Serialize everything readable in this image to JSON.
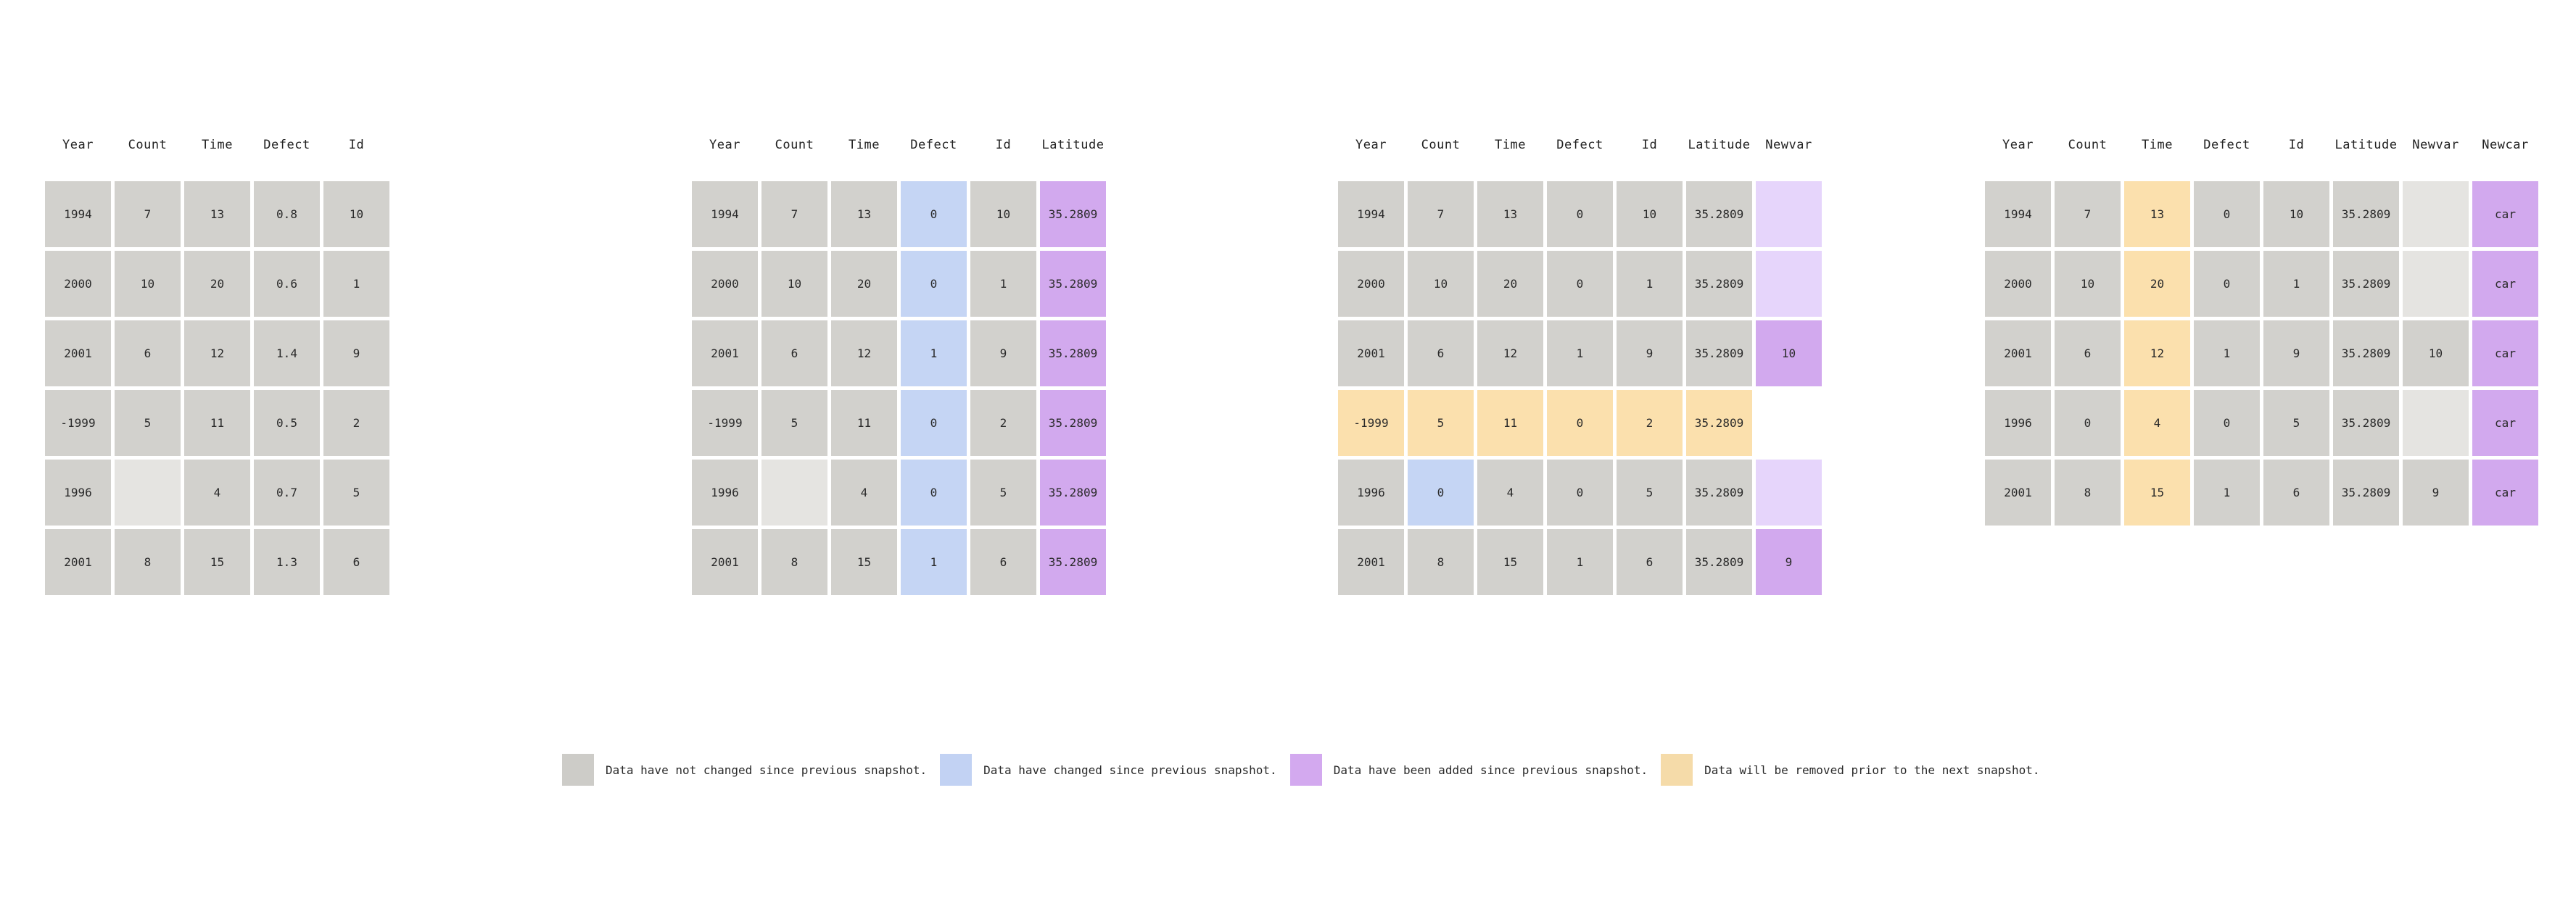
{
  "panels": [
    {
      "headers": [
        "Year",
        "Count",
        "Time",
        "Defect",
        "Id"
      ],
      "rows": [
        [
          {
            "v": "1994",
            "s": "same"
          },
          {
            "v": "7",
            "s": "same"
          },
          {
            "v": "13",
            "s": "same"
          },
          {
            "v": "0.8",
            "s": "same"
          },
          {
            "v": "10",
            "s": "same"
          }
        ],
        [
          {
            "v": "2000",
            "s": "same"
          },
          {
            "v": "10",
            "s": "same"
          },
          {
            "v": "20",
            "s": "same"
          },
          {
            "v": "0.6",
            "s": "same"
          },
          {
            "v": "1",
            "s": "same"
          }
        ],
        [
          {
            "v": "2001",
            "s": "same"
          },
          {
            "v": "6",
            "s": "same"
          },
          {
            "v": "12",
            "s": "same"
          },
          {
            "v": "1.4",
            "s": "same"
          },
          {
            "v": "9",
            "s": "same"
          }
        ],
        [
          {
            "v": "-1999",
            "s": "same"
          },
          {
            "v": "5",
            "s": "same"
          },
          {
            "v": "11",
            "s": "same"
          },
          {
            "v": "0.5",
            "s": "same"
          },
          {
            "v": "2",
            "s": "same"
          }
        ],
        [
          {
            "v": "1996",
            "s": "same"
          },
          {
            "v": "",
            "s": "empty"
          },
          {
            "v": "4",
            "s": "same"
          },
          {
            "v": "0.7",
            "s": "same"
          },
          {
            "v": "5",
            "s": "same"
          }
        ],
        [
          {
            "v": "2001",
            "s": "same"
          },
          {
            "v": "8",
            "s": "same"
          },
          {
            "v": "15",
            "s": "same"
          },
          {
            "v": "1.3",
            "s": "same"
          },
          {
            "v": "6",
            "s": "same"
          }
        ]
      ]
    },
    {
      "headers": [
        "Year",
        "Count",
        "Time",
        "Defect",
        "Id",
        "Latitude"
      ],
      "rows": [
        [
          {
            "v": "1994",
            "s": "same"
          },
          {
            "v": "7",
            "s": "same"
          },
          {
            "v": "13",
            "s": "same"
          },
          {
            "v": "0",
            "s": "changed"
          },
          {
            "v": "10",
            "s": "same"
          },
          {
            "v": "35.2809",
            "s": "added"
          }
        ],
        [
          {
            "v": "2000",
            "s": "same"
          },
          {
            "v": "10",
            "s": "same"
          },
          {
            "v": "20",
            "s": "same"
          },
          {
            "v": "0",
            "s": "changed"
          },
          {
            "v": "1",
            "s": "same"
          },
          {
            "v": "35.2809",
            "s": "added"
          }
        ],
        [
          {
            "v": "2001",
            "s": "same"
          },
          {
            "v": "6",
            "s": "same"
          },
          {
            "v": "12",
            "s": "same"
          },
          {
            "v": "1",
            "s": "changed"
          },
          {
            "v": "9",
            "s": "same"
          },
          {
            "v": "35.2809",
            "s": "added"
          }
        ],
        [
          {
            "v": "-1999",
            "s": "same"
          },
          {
            "v": "5",
            "s": "same"
          },
          {
            "v": "11",
            "s": "same"
          },
          {
            "v": "0",
            "s": "changed"
          },
          {
            "v": "2",
            "s": "same"
          },
          {
            "v": "35.2809",
            "s": "added"
          }
        ],
        [
          {
            "v": "1996",
            "s": "same"
          },
          {
            "v": "",
            "s": "empty"
          },
          {
            "v": "4",
            "s": "same"
          },
          {
            "v": "0",
            "s": "changed"
          },
          {
            "v": "5",
            "s": "same"
          },
          {
            "v": "35.2809",
            "s": "added"
          }
        ],
        [
          {
            "v": "2001",
            "s": "same"
          },
          {
            "v": "8",
            "s": "same"
          },
          {
            "v": "15",
            "s": "same"
          },
          {
            "v": "1",
            "s": "changed"
          },
          {
            "v": "6",
            "s": "same"
          },
          {
            "v": "35.2809",
            "s": "added"
          }
        ]
      ]
    },
    {
      "headers": [
        "Year",
        "Count",
        "Time",
        "Defect",
        "Id",
        "Latitude",
        "Newvar"
      ],
      "rows": [
        [
          {
            "v": "1994",
            "s": "same"
          },
          {
            "v": "7",
            "s": "same"
          },
          {
            "v": "13",
            "s": "same"
          },
          {
            "v": "0",
            "s": "same"
          },
          {
            "v": "10",
            "s": "same"
          },
          {
            "v": "35.2809",
            "s": "same"
          },
          {
            "v": "",
            "s": "pending"
          }
        ],
        [
          {
            "v": "2000",
            "s": "same"
          },
          {
            "v": "10",
            "s": "same"
          },
          {
            "v": "20",
            "s": "same"
          },
          {
            "v": "0",
            "s": "same"
          },
          {
            "v": "1",
            "s": "same"
          },
          {
            "v": "35.2809",
            "s": "same"
          },
          {
            "v": "",
            "s": "pending"
          }
        ],
        [
          {
            "v": "2001",
            "s": "same"
          },
          {
            "v": "6",
            "s": "same"
          },
          {
            "v": "12",
            "s": "same"
          },
          {
            "v": "1",
            "s": "same"
          },
          {
            "v": "9",
            "s": "same"
          },
          {
            "v": "35.2809",
            "s": "same"
          },
          {
            "v": "10",
            "s": "added"
          }
        ],
        [
          {
            "v": "-1999",
            "s": "removed"
          },
          {
            "v": "5",
            "s": "removed"
          },
          {
            "v": "11",
            "s": "removed"
          },
          {
            "v": "0",
            "s": "removed"
          },
          {
            "v": "2",
            "s": "removed"
          },
          {
            "v": "35.2809",
            "s": "removed"
          },
          {
            "v": "",
            "s": "none"
          }
        ],
        [
          {
            "v": "1996",
            "s": "same"
          },
          {
            "v": "0",
            "s": "changed"
          },
          {
            "v": "4",
            "s": "same"
          },
          {
            "v": "0",
            "s": "same"
          },
          {
            "v": "5",
            "s": "same"
          },
          {
            "v": "35.2809",
            "s": "same"
          },
          {
            "v": "",
            "s": "pending"
          }
        ],
        [
          {
            "v": "2001",
            "s": "same"
          },
          {
            "v": "8",
            "s": "same"
          },
          {
            "v": "15",
            "s": "same"
          },
          {
            "v": "1",
            "s": "same"
          },
          {
            "v": "6",
            "s": "same"
          },
          {
            "v": "35.2809",
            "s": "same"
          },
          {
            "v": "9",
            "s": "added"
          }
        ]
      ]
    },
    {
      "headers": [
        "Year",
        "Count",
        "Time",
        "Defect",
        "Id",
        "Latitude",
        "Newvar",
        "Newcar"
      ],
      "rows": [
        [
          {
            "v": "1994",
            "s": "same"
          },
          {
            "v": "7",
            "s": "same"
          },
          {
            "v": "13",
            "s": "removed"
          },
          {
            "v": "0",
            "s": "same"
          },
          {
            "v": "10",
            "s": "same"
          },
          {
            "v": "35.2809",
            "s": "same"
          },
          {
            "v": "",
            "s": "empty"
          },
          {
            "v": "car",
            "s": "added"
          }
        ],
        [
          {
            "v": "2000",
            "s": "same"
          },
          {
            "v": "10",
            "s": "same"
          },
          {
            "v": "20",
            "s": "removed"
          },
          {
            "v": "0",
            "s": "same"
          },
          {
            "v": "1",
            "s": "same"
          },
          {
            "v": "35.2809",
            "s": "same"
          },
          {
            "v": "",
            "s": "empty"
          },
          {
            "v": "car",
            "s": "added"
          }
        ],
        [
          {
            "v": "2001",
            "s": "same"
          },
          {
            "v": "6",
            "s": "same"
          },
          {
            "v": "12",
            "s": "removed"
          },
          {
            "v": "1",
            "s": "same"
          },
          {
            "v": "9",
            "s": "same"
          },
          {
            "v": "35.2809",
            "s": "same"
          },
          {
            "v": "10",
            "s": "same"
          },
          {
            "v": "car",
            "s": "added"
          }
        ],
        [
          {
            "v": "1996",
            "s": "same"
          },
          {
            "v": "0",
            "s": "same"
          },
          {
            "v": "4",
            "s": "removed"
          },
          {
            "v": "0",
            "s": "same"
          },
          {
            "v": "5",
            "s": "same"
          },
          {
            "v": "35.2809",
            "s": "same"
          },
          {
            "v": "",
            "s": "empty"
          },
          {
            "v": "car",
            "s": "added"
          }
        ],
        [
          {
            "v": "2001",
            "s": "same"
          },
          {
            "v": "8",
            "s": "same"
          },
          {
            "v": "15",
            "s": "removed"
          },
          {
            "v": "1",
            "s": "same"
          },
          {
            "v": "6",
            "s": "same"
          },
          {
            "v": "35.2809",
            "s": "same"
          },
          {
            "v": "9",
            "s": "same"
          },
          {
            "v": "car",
            "s": "added"
          }
        ]
      ]
    }
  ],
  "legend": {
    "unchanged": "Data have not changed since previous snapshot.",
    "changed": "Data have changed since previous snapshot.",
    "added": "Data have been added since previous snapshot.",
    "removed": "Data will be removed prior to the next snapshot."
  },
  "colors": {
    "unchanged": "#d2d1cd",
    "changed": "#c5d5f4",
    "added": "#d2a9ee",
    "removed": "#fbe0ad",
    "empty": "#e5e4e1",
    "pending": "#e6d5fb"
  }
}
